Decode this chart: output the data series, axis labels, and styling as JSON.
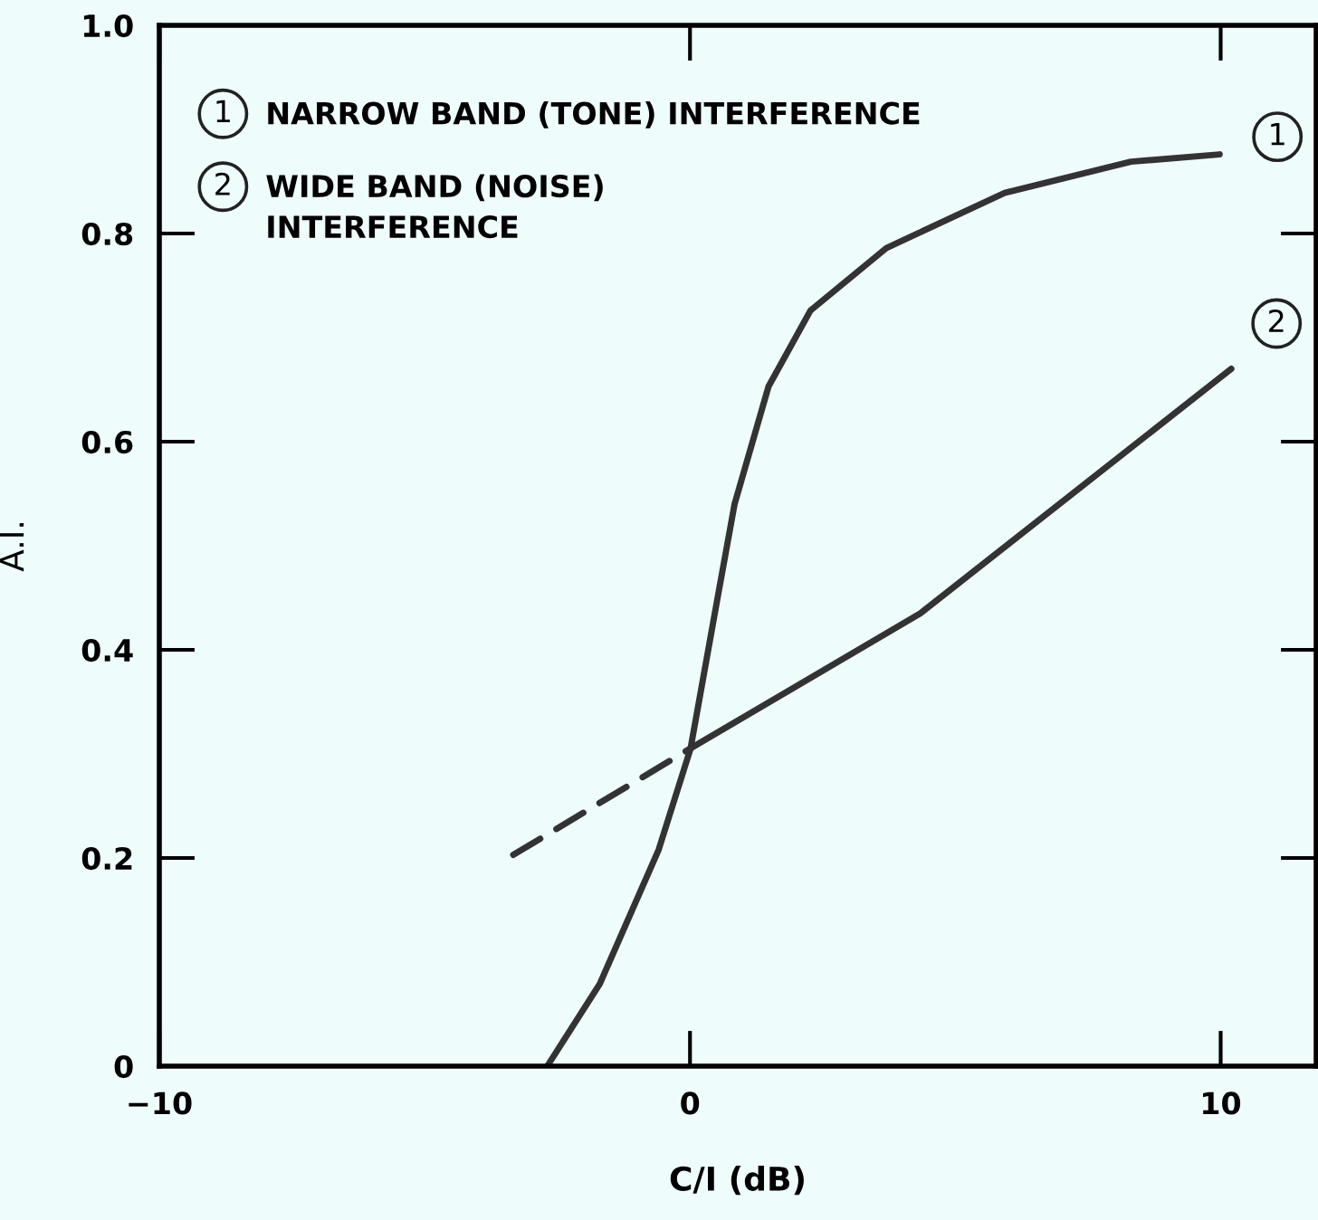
{
  "chart_data": {
    "type": "line",
    "xlabel": "C/I (dB)",
    "ylabel": "A.I.",
    "xlim": [
      -10,
      11.8
    ],
    "xticks": [
      {
        "value": -10,
        "label": "−10"
      },
      0,
      10
    ],
    "ylim": [
      0,
      1.0
    ],
    "yticks": [
      0,
      0.2,
      0.4,
      0.6,
      0.8,
      {
        "value": 1.0,
        "label": "1.0"
      }
    ],
    "grid": false,
    "line_style": "solid",
    "annotations": [
      "NARROW BAND (TONE) INTERFERENCE",
      "WIDE BAND (NOISE)\nINTERFERENCE"
    ],
    "series": [
      {
        "name": "1",
        "color": "#333333",
        "x": [
          -2.69,
          -1.7,
          -0.59,
          0.01,
          0.52,
          0.84,
          1.48,
          2.27,
          3.7,
          5.93,
          8.31,
          9.98
        ],
        "values": [
          0,
          0.079,
          0.208,
          0.305,
          0.45,
          0.54,
          0.653,
          0.726,
          0.786,
          0.839,
          0.869,
          0.876
        ]
      },
      {
        "name": "2",
        "color": "#333333",
        "x": [
          0,
          4.34,
          10.2
        ],
        "values": [
          0.305,
          0.435,
          0.67
        ]
      },
      {
        "color": "#333333",
        "line_style": "dashed",
        "x": [
          -3.33,
          0
        ],
        "values": [
          0.203,
          0.305
        ]
      }
    ]
  }
}
